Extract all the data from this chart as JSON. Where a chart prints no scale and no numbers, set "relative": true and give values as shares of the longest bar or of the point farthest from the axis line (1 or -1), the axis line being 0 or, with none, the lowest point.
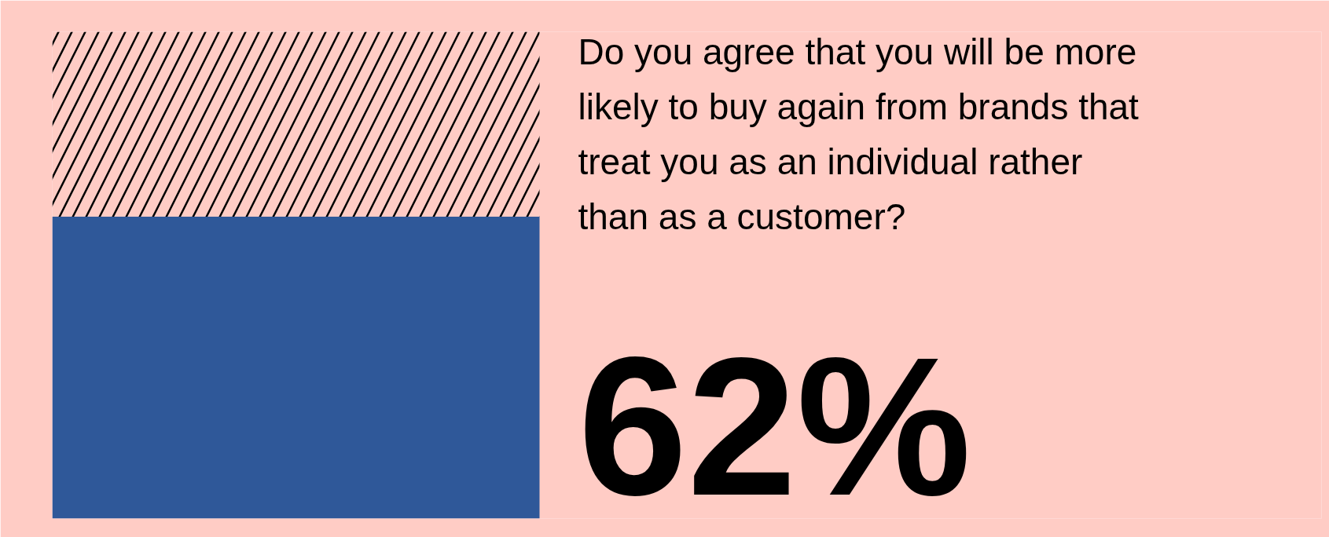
{
  "chart_data": {
    "type": "bar",
    "stacked": true,
    "relative": true,
    "title": "Do you agree that you will be more likely to buy again from brands that treat you as an individual rather than as a customer?",
    "categories": [
      null
    ],
    "series": [
      {
        "color": "#2f5899",
        "values": [
          0.62
        ]
      },
      {
        "color": "#ffccc5",
        "values": [
          0.38
        ]
      }
    ],
    "annotations": [
      "62%"
    ],
    "tick_labels": false,
    "grid": false
  }
}
